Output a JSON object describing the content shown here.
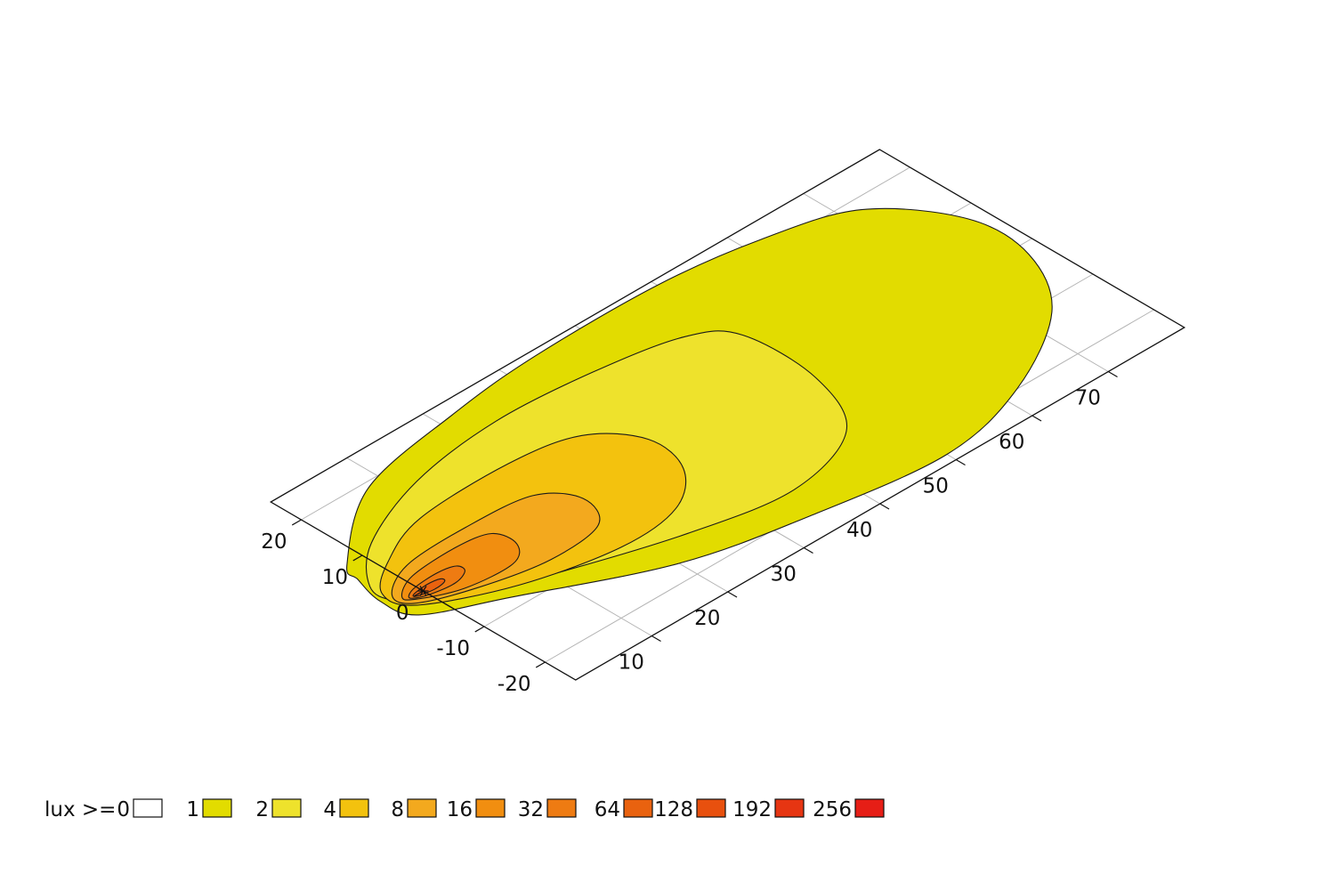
{
  "chart_data": {
    "type": "heatmap",
    "title": "",
    "legend": {
      "prefix": "lux >= ",
      "placement": "bottom-left",
      "items": [
        {
          "label": "0",
          "color": "#ffffff"
        },
        {
          "label": "1",
          "color": "#e2dc00"
        },
        {
          "label": "2",
          "color": "#eee22c"
        },
        {
          "label": "4",
          "color": "#f3c20e"
        },
        {
          "label": "8",
          "color": "#f3a91e"
        },
        {
          "label": "16",
          "color": "#f18e10"
        },
        {
          "label": "32",
          "color": "#ee7b12"
        },
        {
          "label": "64",
          "color": "#e9620f"
        },
        {
          "label": "128",
          "color": "#e8500e"
        },
        {
          "label": "192",
          "color": "#e63512"
        },
        {
          "label": "256",
          "color": "#e61e16"
        }
      ]
    },
    "x_axis": {
      "label": "",
      "range": [
        0,
        80
      ],
      "ticks": [
        10,
        20,
        30,
        40,
        50,
        60,
        70
      ]
    },
    "y_axis": {
      "label": "",
      "range": [
        -25,
        25
      ],
      "ticks": [
        -20,
        -10,
        0,
        10,
        20
      ]
    },
    "grid": true,
    "light_source": {
      "x": 0,
      "y": 0,
      "marker": "asterisk"
    },
    "series": [
      {
        "threshold": 1,
        "color": "#e2dc00",
        "outline": [
          [
            -3,
            7
          ],
          [
            -2,
            10
          ],
          [
            8,
            19
          ],
          [
            22,
            22.5
          ],
          [
            34,
            24
          ],
          [
            50,
            24
          ],
          [
            62,
            22
          ],
          [
            72,
            18
          ],
          [
            78,
            8
          ],
          [
            78,
            -2
          ],
          [
            73,
            -12
          ],
          [
            62,
            -20
          ],
          [
            50,
            -23.5
          ],
          [
            34,
            -21
          ],
          [
            20,
            -17
          ],
          [
            5,
            -8
          ],
          [
            -3,
            -3
          ],
          [
            -4,
            2
          ]
        ]
      },
      {
        "threshold": 2,
        "color": "#eee22c",
        "outline": [
          [
            -3,
            5
          ],
          [
            2,
            11
          ],
          [
            12,
            16
          ],
          [
            24,
            18
          ],
          [
            36,
            17
          ],
          [
            46,
            14.5
          ],
          [
            50,
            10
          ],
          [
            50,
            -2
          ],
          [
            46,
            -12
          ],
          [
            36,
            -16
          ],
          [
            24,
            -13.5
          ],
          [
            10,
            -8
          ],
          [
            0,
            -3
          ],
          [
            -3,
            1
          ]
        ]
      },
      {
        "threshold": 4,
        "color": "#f3c20e",
        "outline": [
          [
            -3,
            3
          ],
          [
            1,
            7
          ],
          [
            8,
            10.5
          ],
          [
            20,
            11
          ],
          [
            28,
            9
          ],
          [
            32,
            3
          ],
          [
            31,
            -4
          ],
          [
            26,
            -9
          ],
          [
            18,
            -10
          ],
          [
            7,
            -7
          ],
          [
            -2,
            -1.5
          ]
        ]
      },
      {
        "threshold": 8,
        "color": "#f3a91e",
        "outline": [
          [
            -2.5,
            2
          ],
          [
            2,
            5
          ],
          [
            10,
            5.5
          ],
          [
            18,
            4.5
          ],
          [
            21,
            0
          ],
          [
            19,
            -5
          ],
          [
            12,
            -6
          ],
          [
            4,
            -4
          ],
          [
            -2,
            -1
          ]
        ]
      },
      {
        "threshold": 16,
        "color": "#f18e10",
        "outline": [
          [
            -2,
            1
          ],
          [
            1,
            3
          ],
          [
            7,
            3.5
          ],
          [
            11,
            2.5
          ],
          [
            11.5,
            -1
          ],
          [
            9,
            -3.5
          ],
          [
            3,
            -3
          ],
          [
            -1.5,
            -0.5
          ]
        ]
      },
      {
        "threshold": 32,
        "color": "#ee7b12",
        "outline": [
          [
            -1.5,
            0.5
          ],
          [
            0,
            1.2
          ],
          [
            3,
            1.4
          ],
          [
            5,
            0.8
          ],
          [
            5,
            -0.6
          ],
          [
            3,
            -1.5
          ],
          [
            0,
            -1
          ],
          [
            -1.5,
            -0.2
          ]
        ]
      },
      {
        "threshold": 64,
        "color": "#e9620f",
        "outline": [
          [
            -1,
            0.3
          ],
          [
            1,
            0.6
          ],
          [
            2.5,
            0.3
          ],
          [
            2.5,
            -0.4
          ],
          [
            1,
            -0.7
          ],
          [
            -1,
            -0.2
          ]
        ]
      }
    ]
  }
}
